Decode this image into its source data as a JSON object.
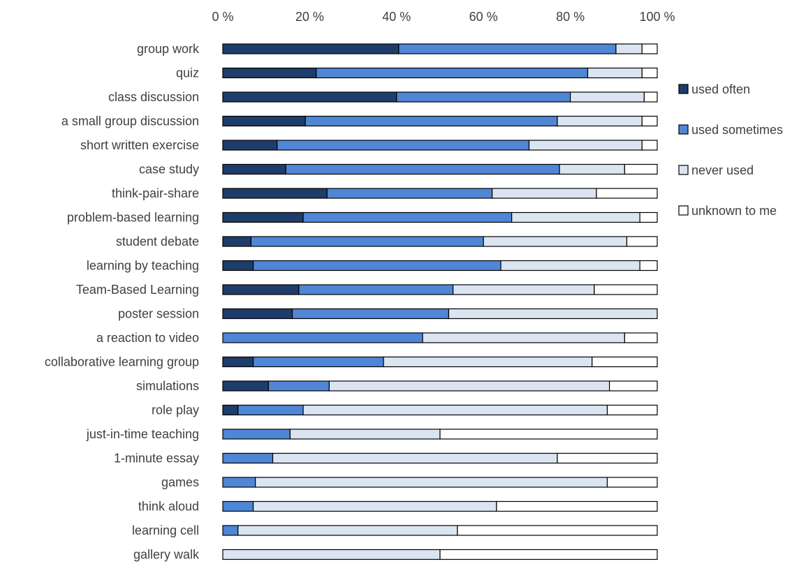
{
  "chart_data": {
    "type": "bar",
    "orientation": "horizontal",
    "stacked": "percent",
    "title": "",
    "xlabel": "",
    "ylabel": "",
    "xlim": [
      0,
      100
    ],
    "x_ticks": [
      "0 %",
      "20 %",
      "40 %",
      "60 %",
      "80 %",
      "100 %"
    ],
    "x_axis_position": "top",
    "grid": false,
    "legend_position": "right",
    "categories": [
      "group work",
      "quiz",
      "class discussion",
      "a small group discussion",
      "short written exercise",
      "case study",
      "think-pair-share",
      "problem-based learning",
      "student debate",
      "learning by teaching",
      "Team-Based Learning",
      "poster session",
      "a reaction to video",
      "collaborative learning group",
      "simulations",
      "role play",
      "just-in-time teaching",
      "1-minute essay",
      "games",
      "think aloud",
      "learning cell",
      "gallery walk"
    ],
    "series": [
      {
        "name": "used often",
        "color": "#1f3d6b",
        "values": [
          40.5,
          21.5,
          40,
          19,
          12.5,
          14.5,
          24,
          18.5,
          6.5,
          7,
          17.5,
          16,
          0,
          7,
          10.5,
          3.5,
          0,
          0,
          0,
          0,
          0,
          0
        ]
      },
      {
        "name": "used sometimes",
        "color": "#4f86d6",
        "values": [
          50,
          62.5,
          40,
          58,
          58,
          63,
          38,
          48,
          53.5,
          57,
          35.5,
          36,
          46,
          30,
          14,
          15,
          15.5,
          11.5,
          7.5,
          7,
          3.5,
          0
        ]
      },
      {
        "name": "never used",
        "color": "#dbe5f2",
        "values": [
          6,
          12.5,
          17,
          19.5,
          26,
          15,
          24,
          29.5,
          33,
          32,
          32.5,
          48,
          46.5,
          48,
          64.5,
          70,
          34.5,
          65.5,
          81,
          56,
          50.5,
          50
        ]
      },
      {
        "name": "unknown to me",
        "color": "#ffffff",
        "values": [
          3.5,
          3.5,
          3,
          3.5,
          3.5,
          7.5,
          14,
          4,
          7,
          4,
          14.5,
          0,
          7.5,
          15,
          11,
          11.5,
          50,
          23,
          11.5,
          37,
          46,
          50
        ]
      }
    ]
  }
}
